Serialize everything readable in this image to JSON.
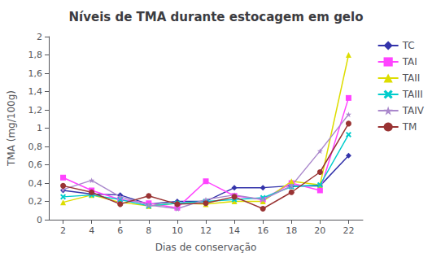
{
  "chart_data": {
    "type": "line",
    "title": "Níveis de TMA durante estocagem em gelo",
    "xlabel": "Dias de conservação",
    "ylabel": "TMA (mg/100g)",
    "x": [
      2,
      4,
      6,
      8,
      10,
      12,
      14,
      16,
      18,
      20,
      22
    ],
    "series": [
      {
        "name": "TC",
        "color": "#3333aa",
        "marker": "diamond",
        "values": [
          0.32,
          0.28,
          0.27,
          0.17,
          0.2,
          0.2,
          0.35,
          0.35,
          0.37,
          0.37,
          0.7
        ]
      },
      {
        "name": "TAI",
        "color": "#ff44ff",
        "marker": "square",
        "values": [
          0.46,
          0.32,
          0.22,
          0.18,
          0.13,
          0.42,
          0.26,
          0.22,
          0.4,
          0.32,
          1.33
        ]
      },
      {
        "name": "TAII",
        "color": "#dddd00",
        "marker": "triangle",
        "values": [
          0.19,
          0.27,
          0.19,
          0.15,
          0.18,
          0.17,
          0.2,
          0.2,
          0.42,
          0.38,
          1.8
        ]
      },
      {
        "name": "TAIII",
        "color": "#00cccc",
        "marker": "x",
        "values": [
          0.25,
          0.27,
          0.22,
          0.15,
          0.18,
          0.2,
          0.22,
          0.24,
          0.36,
          0.38,
          0.93
        ]
      },
      {
        "name": "TAIV",
        "color": "#aa88cc",
        "marker": "star",
        "values": [
          0.33,
          0.43,
          0.25,
          0.16,
          0.12,
          0.22,
          0.27,
          0.22,
          0.37,
          0.75,
          1.15
        ]
      },
      {
        "name": "TM",
        "color": "#993333",
        "marker": "circle",
        "values": [
          0.37,
          0.3,
          0.17,
          0.26,
          0.17,
          0.18,
          0.25,
          0.12,
          0.3,
          0.52,
          1.05
        ]
      }
    ],
    "xlim": [
      1,
      23
    ],
    "xticks": [
      2,
      4,
      6,
      8,
      10,
      12,
      14,
      16,
      18,
      20,
      22
    ],
    "ylim": [
      0,
      2
    ],
    "yticks": [
      0,
      {
        "value": 0.2,
        "label": "0,2"
      },
      {
        "value": 0.4,
        "label": "0,4"
      },
      {
        "value": 0.6,
        "label": "0,6"
      },
      {
        "value": 0.8,
        "label": "0,8"
      },
      1,
      {
        "value": 1.2,
        "label": "1,2"
      },
      {
        "value": 1.4,
        "label": "1,4"
      },
      {
        "value": 1.6,
        "label": "1,6"
      },
      {
        "value": 1.8,
        "label": "1,8"
      },
      2
    ],
    "grid": false,
    "legend": "upper right"
  }
}
